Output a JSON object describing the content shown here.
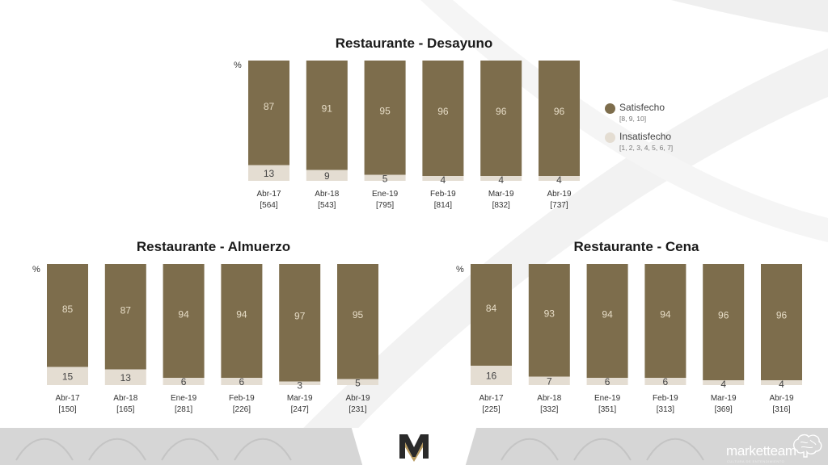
{
  "colors": {
    "satisfied": "#7d6d4c",
    "unsatisfied": "#e4ddd2",
    "label_on_satisfied": "#e6dcc6",
    "label_on_unsatisfied": "#444444"
  },
  "legend": {
    "satisfied_label": "Satisfecho",
    "satisfied_desc": "[8, 9, 10]",
    "unsatisfied_label": "Insatisfecho",
    "unsatisfied_desc": "[1, 2, 3, 4, 5, 6, 7]"
  },
  "footer": {
    "brand": "marketteam",
    "tagline": "CULTURA DE ENTENDIMIENTO",
    "logo_icon": "mm-monogram-icon",
    "brain_icon": "brain-icon"
  },
  "chart_data": [
    {
      "type": "bar",
      "stacked": true,
      "title": "Restaurante - Desayuno",
      "unit": "%",
      "ylim": [
        0,
        100
      ],
      "categories": [
        "Abr-17",
        "Abr-18",
        "Ene-19",
        "Feb-19",
        "Mar-19",
        "Abr-19"
      ],
      "bases": [
        "[564]",
        "[543]",
        "[795]",
        "[814]",
        "[832]",
        "[737]"
      ],
      "series": [
        {
          "name": "Satisfecho",
          "values": [
            87,
            91,
            95,
            96,
            96,
            96
          ]
        },
        {
          "name": "Insatisfecho",
          "values": [
            13,
            9,
            5,
            4,
            4,
            4
          ]
        }
      ]
    },
    {
      "type": "bar",
      "stacked": true,
      "title": "Restaurante - Almuerzo",
      "unit": "%",
      "ylim": [
        0,
        100
      ],
      "categories": [
        "Abr-17",
        "Abr-18",
        "Ene-19",
        "Feb-19",
        "Mar-19",
        "Abr-19"
      ],
      "bases": [
        "[150]",
        "[165]",
        "[281]",
        "[226]",
        "[247]",
        "[231]"
      ],
      "series": [
        {
          "name": "Satisfecho",
          "values": [
            85,
            87,
            94,
            94,
            97,
            95
          ]
        },
        {
          "name": "Insatisfecho",
          "values": [
            15,
            13,
            6,
            6,
            3,
            5
          ]
        }
      ]
    },
    {
      "type": "bar",
      "stacked": true,
      "title": "Restaurante - Cena",
      "unit": "%",
      "ylim": [
        0,
        100
      ],
      "categories": [
        "Abr-17",
        "Abr-18",
        "Ene-19",
        "Feb-19",
        "Mar-19",
        "Abr-19"
      ],
      "bases": [
        "[225]",
        "[332]",
        "[351]",
        "[313]",
        "[369]",
        "[316]"
      ],
      "series": [
        {
          "name": "Satisfecho",
          "values": [
            84,
            93,
            94,
            94,
            96,
            96
          ]
        },
        {
          "name": "Insatisfecho",
          "values": [
            16,
            7,
            6,
            6,
            4,
            4
          ]
        }
      ]
    }
  ]
}
